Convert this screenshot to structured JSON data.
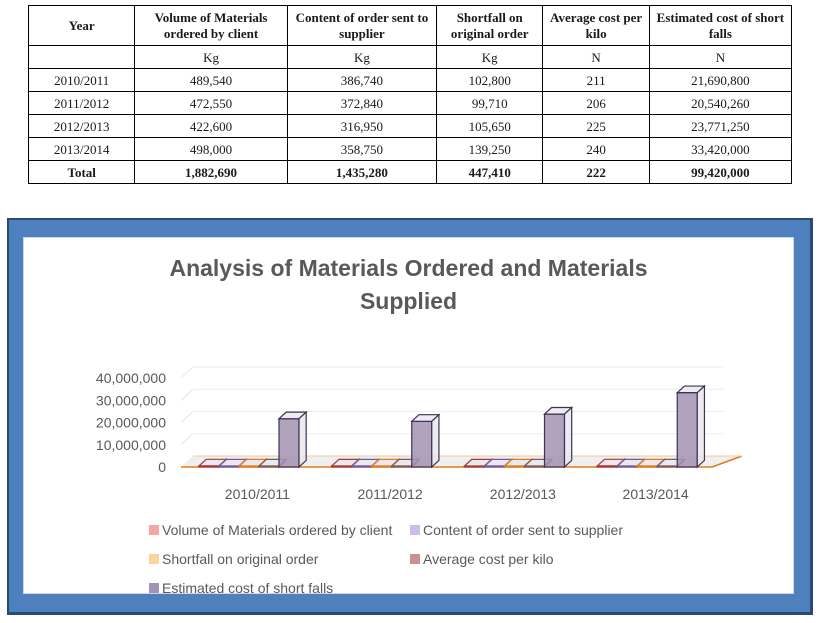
{
  "table": {
    "headers": [
      "Year",
      "Volume of Materials ordered by client",
      "Content of order sent to supplier",
      "Shortfall on original order",
      "Average cost per kilo",
      "Estimated cost of short falls"
    ],
    "units": [
      "",
      "Kg",
      "Kg",
      "Kg",
      "N",
      "N"
    ],
    "rows": [
      [
        "2010/2011",
        "489,540",
        "386,740",
        "102,800",
        "211",
        "21,690,800"
      ],
      [
        "2011/2012",
        "472,550",
        "372,840",
        "99,710",
        "206",
        "20,540,260"
      ],
      [
        "2012/2013",
        "422,600",
        "316,950",
        "105,650",
        "225",
        "23,771,250"
      ],
      [
        "2013/2014",
        "498,000",
        "358,750",
        "139,250",
        "240",
        "33,420,000"
      ]
    ],
    "total": [
      "Total",
      "1,882,690",
      "1,435,280",
      "447,410",
      "222",
      "99,420,000"
    ]
  },
  "chart_data": {
    "type": "bar",
    "style": "3d-clustered-column",
    "title": "Analysis of Materials Ordered and Materials Supplied",
    "title_lines": [
      "Analysis of Materials Ordered and Materials",
      "Supplied"
    ],
    "categories": [
      "2010/2011",
      "2011/2012",
      "2012/2013",
      "2013/2014"
    ],
    "series": [
      {
        "name": "Volume of Materials ordered by client",
        "values": [
          489540,
          472550,
          422600,
          498000
        ],
        "color": "#f4a6a3",
        "edge": "#a33a35"
      },
      {
        "name": "Content of order sent to supplier",
        "values": [
          386740,
          372840,
          316950,
          358750
        ],
        "color": "#cdbde6",
        "edge": "#6b5a9e"
      },
      {
        "name": "Shortfall on original order",
        "values": [
          102800,
          99710,
          105650,
          139250
        ],
        "color": "#fbd49b",
        "edge": "#e07b1c"
      },
      {
        "name": "Average cost per kilo",
        "values": [
          211,
          206,
          225,
          240
        ],
        "color": "#c99291",
        "edge": "#7a5a5a"
      },
      {
        "name": "Estimated cost of short falls",
        "values": [
          21690800,
          20540260,
          23771250,
          33420000
        ],
        "color": "#a393b3",
        "edge": "#3d3355"
      }
    ],
    "y_ticks": [
      "0",
      "10,000,000",
      "20,000,000",
      "30,000,000",
      "40,000,000"
    ],
    "ylim": [
      0,
      40000000
    ],
    "xlabel": "",
    "ylabel": "",
    "grid": true,
    "legend_position": "bottom"
  },
  "colors": {
    "frame": "#4e80bd",
    "frame_border": "#2a4a72",
    "floor_edge": "#e07b1c",
    "text_gray": "#595959"
  }
}
